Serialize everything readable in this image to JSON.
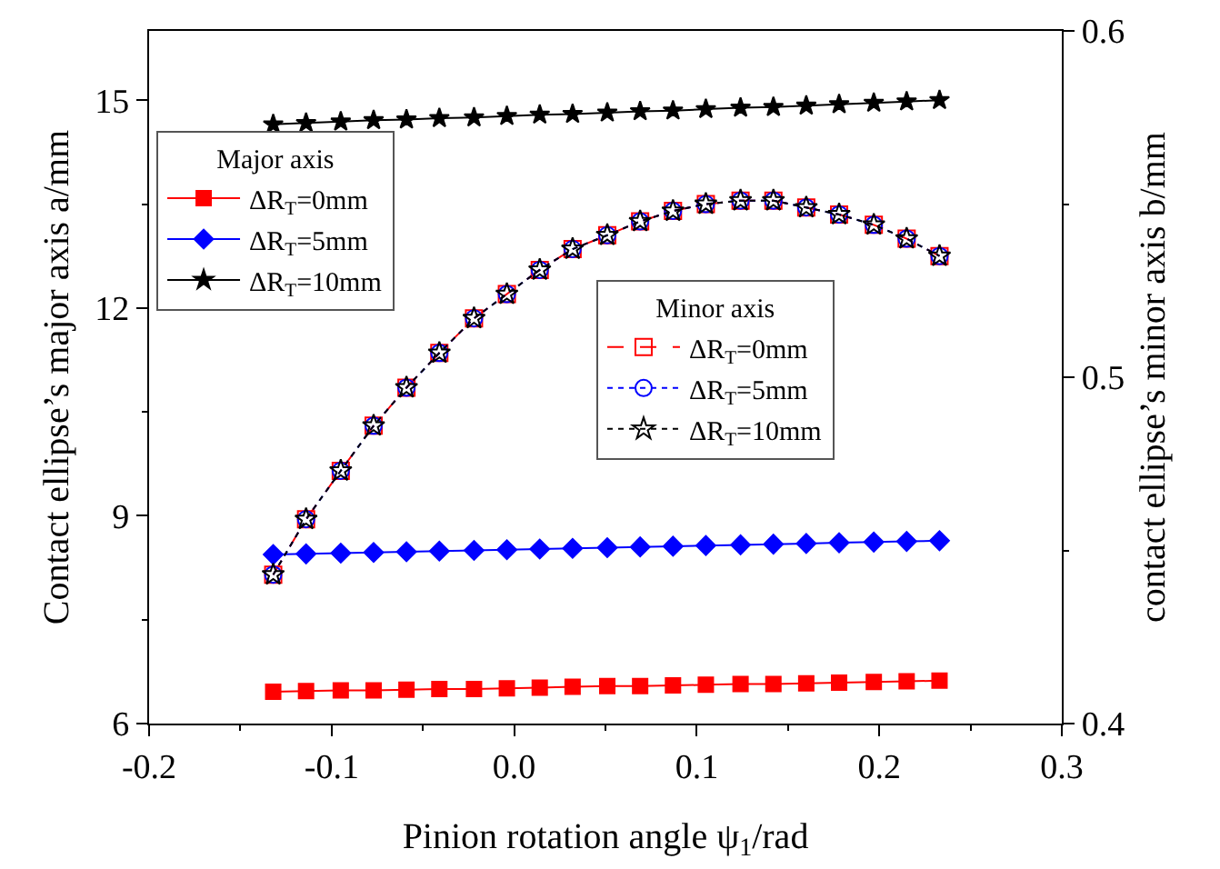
{
  "chart_data": {
    "type": "line",
    "xlabel": "Pinion rotation angle ψ$_{1}$/rad",
    "ylabel": "Contact ellipse’s major axis a/mm",
    "y2label": "contact ellipse’s minor axis b/mm",
    "x": [
      -0.132,
      -0.114,
      -0.095,
      -0.077,
      -0.059,
      -0.041,
      -0.022,
      -0.004,
      0.014,
      0.032,
      0.051,
      0.069,
      0.087,
      0.105,
      0.124,
      0.142,
      0.16,
      0.178,
      0.197,
      0.215,
      0.233
    ],
    "xlim": [
      -0.2,
      0.3
    ],
    "xticks": [
      -0.2,
      -0.1,
      {
        "value": 0,
        "label": "0.0"
      },
      0.1,
      0.2,
      0.3
    ],
    "ylim": [
      6,
      16
    ],
    "yticks": [
      6,
      9,
      12,
      15
    ],
    "y2lim": [
      0.4,
      0.6
    ],
    "y2ticks": [
      0.4,
      0.5,
      0.6
    ],
    "legend": [
      "top left",
      "center"
    ],
    "legend_title": [
      "Major axis",
      "Minor axis"
    ],
    "grid": false,
    "series": [
      {
        "name": "ΔR$_{T}$=0mm",
        "color": "#ff0000",
        "marker": "square",
        "line_style": "solid",
        "values": [
          6.46,
          6.47,
          6.48,
          6.48,
          6.49,
          6.5,
          6.5,
          6.51,
          6.52,
          6.53,
          6.54,
          6.54,
          6.55,
          6.56,
          6.57,
          6.57,
          6.58,
          6.59,
          6.6,
          6.61,
          6.62
        ]
      },
      {
        "name": "ΔR$_{T}$=5mm",
        "color": "#0000ff",
        "marker": "diamond",
        "line_style": "solid",
        "values": [
          8.44,
          8.45,
          8.46,
          8.47,
          8.48,
          8.49,
          8.5,
          8.51,
          8.52,
          8.53,
          8.54,
          8.55,
          8.56,
          8.57,
          8.58,
          8.59,
          8.6,
          8.61,
          8.62,
          8.63,
          8.64
        ]
      },
      {
        "name": "ΔR$_{T}$=10mm",
        "color": "#000000",
        "marker": "star",
        "line_style": "solid",
        "values": [
          14.65,
          14.67,
          14.69,
          14.71,
          14.72,
          14.74,
          14.75,
          14.77,
          14.79,
          14.8,
          14.82,
          14.84,
          14.85,
          14.87,
          14.89,
          14.9,
          14.92,
          14.94,
          14.96,
          14.98,
          15.0
        ]
      },
      {
        "name": "ΔR$_{T}$=0mm",
        "color": "#ff0000",
        "marker": "square",
        "line_style": "dashed",
        "axis": "y2",
        "values": [
          0.443,
          0.459,
          0.473,
          0.486,
          0.497,
          0.507,
          0.517,
          0.524,
          0.531,
          0.537,
          0.541,
          0.545,
          0.548,
          0.55,
          0.551,
          0.551,
          0.549,
          0.547,
          0.544,
          0.54,
          0.535
        ]
      },
      {
        "name": "ΔR$_{T}$=5mm",
        "color": "#0000ff",
        "marker": "circle",
        "line_style": "dotted",
        "axis": "y2",
        "values": [
          0.443,
          0.459,
          0.473,
          0.486,
          0.497,
          0.507,
          0.517,
          0.524,
          0.531,
          0.537,
          0.541,
          0.545,
          0.548,
          0.55,
          0.551,
          0.551,
          0.549,
          0.547,
          0.544,
          0.54,
          0.535
        ]
      },
      {
        "name": "ΔR$_{T}$=10mm",
        "color": "#000000",
        "marker": "star",
        "line_style": "dotted",
        "axis": "y2",
        "values": [
          0.443,
          0.459,
          0.473,
          0.486,
          0.497,
          0.507,
          0.517,
          0.524,
          0.531,
          0.537,
          0.541,
          0.545,
          0.548,
          0.55,
          0.551,
          0.551,
          0.549,
          0.547,
          0.544,
          0.54,
          0.535
        ]
      }
    ]
  }
}
